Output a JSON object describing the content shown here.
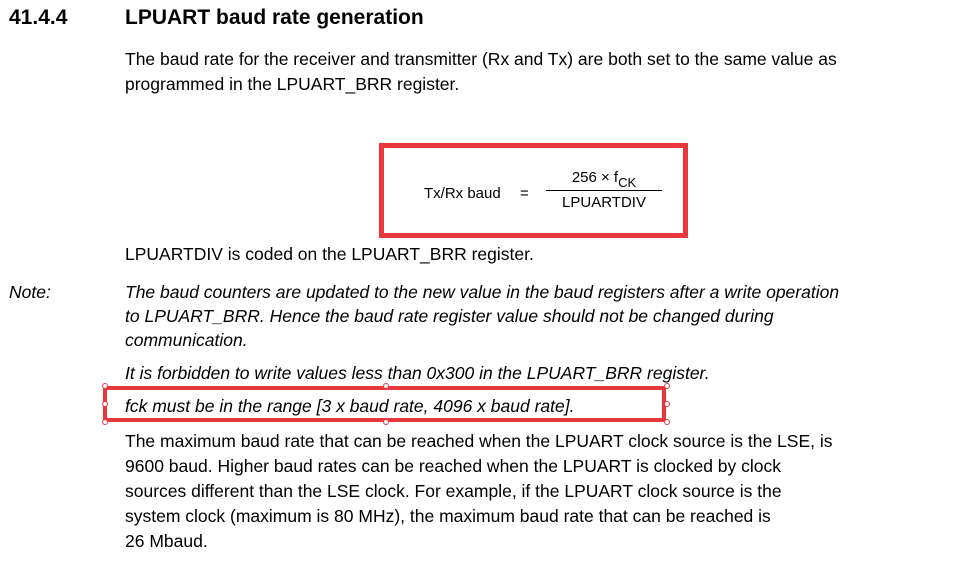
{
  "section": {
    "number": "41.4.4",
    "title": "LPUART baud rate generation"
  },
  "intro": {
    "line1": "The baud rate for the receiver and transmitter (Rx and Tx) are both set to the same value as",
    "line2": "programmed in the LPUART_BRR register."
  },
  "formula": {
    "lhs": "Tx/Rx baud",
    "equals": "=",
    "numerator_main": "256 × f",
    "numerator_sub": "CK",
    "denominator": "LPUARTDIV"
  },
  "coded_text": "LPUARTDIV is coded on the LPUART_BRR register.",
  "note": {
    "label": "Note:",
    "para1": [
      "The baud counters are updated to the new value in the baud registers after a write operation",
      "to LPUART_BRR. Hence the baud rate register value should not be changed during",
      "communication."
    ],
    "para2": "It is forbidden to write values less than 0x300 in the LPUART_BRR register.",
    "para3": "fck must be in the range [3 x baud rate, 4096 x baud rate]."
  },
  "final_para": [
    "The maximum baud rate that can be reached when the LPUART clock source is the LSE, is",
    "9600 baud. Higher baud rates can be reached when the LPUART is clocked by clock",
    "sources different than the LSE clock. For example, if the LPUART clock source is the",
    "system clock (maximum is 80 MHz), the maximum baud rate that can be reached is",
    "26 Mbaud."
  ],
  "colors": {
    "highlight": "#e8383d"
  }
}
